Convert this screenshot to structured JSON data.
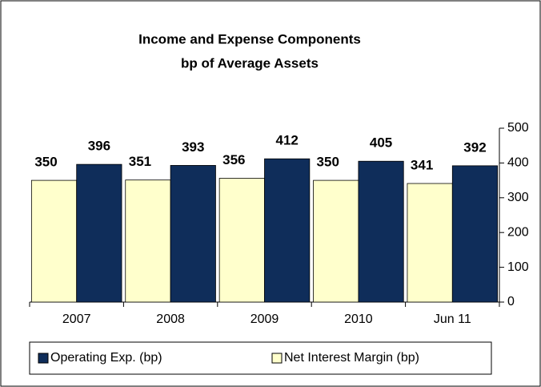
{
  "chart_data": {
    "type": "bar",
    "title": [
      "Income and Expense Components",
      "bp of Average Assets"
    ],
    "categories": [
      "2007",
      "2008",
      "2009",
      "2010",
      "Jun 11"
    ],
    "series": [
      {
        "name": "Net Interest Margin (bp)",
        "color": "#ffffcc",
        "label_color": "#ee1c25",
        "values": [
          350,
          351,
          356,
          350,
          341
        ]
      },
      {
        "name": "Operating Exp. (bp)",
        "color": "#0f2d5a",
        "label_color": "#1f2a7c",
        "values": [
          396,
          393,
          412,
          405,
          392
        ]
      }
    ],
    "ylim": [
      0,
      500
    ],
    "yticks": [
      0,
      100,
      200,
      300,
      400,
      500
    ],
    "grid": false,
    "legend": "bottom"
  }
}
